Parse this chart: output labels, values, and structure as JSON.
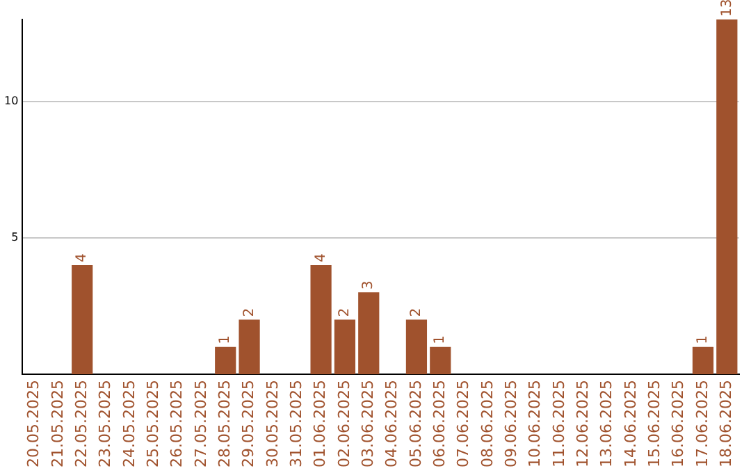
{
  "chart_data": {
    "type": "bar",
    "categories": [
      "20.05.2025",
      "21.05.2025",
      "22.05.2025",
      "23.05.2025",
      "24.05.2025",
      "25.05.2025",
      "26.05.2025",
      "27.05.2025",
      "28.05.2025",
      "29.05.2025",
      "30.05.2025",
      "31.05.2025",
      "01.06.2025",
      "02.06.2025",
      "03.06.2025",
      "04.06.2025",
      "05.06.2025",
      "06.06.2025",
      "07.06.2025",
      "08.06.2025",
      "09.06.2025",
      "10.06.2025",
      "11.06.2025",
      "12.06.2025",
      "13.06.2025",
      "14.06.2025",
      "15.06.2025",
      "16.06.2025",
      "17.06.2025",
      "18.06.2025"
    ],
    "values": [
      0,
      0,
      4,
      0,
      0,
      0,
      0,
      0,
      1,
      2,
      0,
      0,
      4,
      2,
      3,
      0,
      2,
      1,
      0,
      0,
      0,
      0,
      0,
      0,
      0,
      0,
      0,
      0,
      1,
      13
    ],
    "value_labels": [
      null,
      null,
      "4",
      null,
      null,
      null,
      null,
      null,
      "1",
      "2",
      null,
      null,
      "4",
      "2",
      "3",
      null,
      "2",
      "1",
      null,
      null,
      null,
      null,
      null,
      null,
      null,
      null,
      null,
      null,
      "1",
      "13"
    ],
    "color": "#a0522d",
    "ylim": [
      0,
      13
    ],
    "yticks": [
      5,
      10
    ],
    "grid": "y"
  }
}
